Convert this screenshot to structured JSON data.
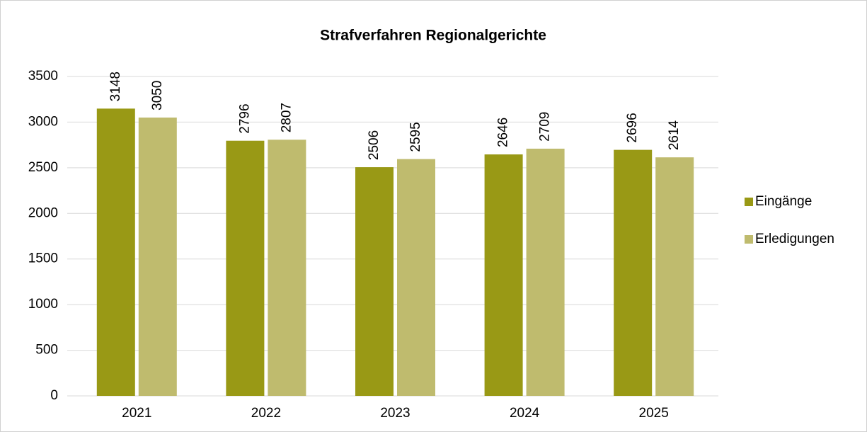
{
  "chart_data": {
    "type": "bar",
    "title": "Strafverfahren Regionalgerichte",
    "categories": [
      "2021",
      "2022",
      "2023",
      "2024",
      "2025"
    ],
    "series": [
      {
        "name": "Eingänge",
        "color": "#999915",
        "values": [
          3148,
          2796,
          2506,
          2646,
          2696
        ]
      },
      {
        "name": "Erledigungen",
        "color": "#bfbb6e",
        "values": [
          3050,
          2807,
          2595,
          2709,
          2614
        ]
      }
    ],
    "ylim": [
      0,
      3500
    ],
    "yticks": [
      0,
      500,
      1000,
      1500,
      2000,
      2500,
      3000,
      3500
    ],
    "grid": true,
    "legend": "right"
  }
}
